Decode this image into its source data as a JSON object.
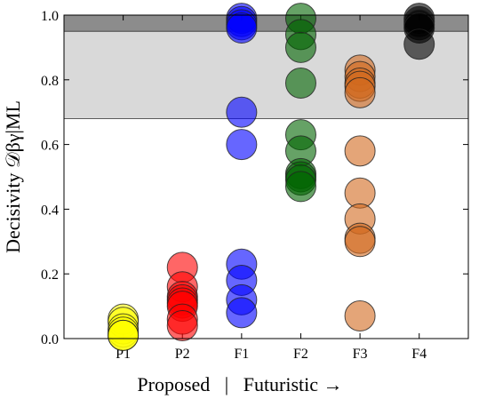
{
  "chart_data": {
    "type": "strip",
    "ylabel": "Decisivity 𝒟βγ|ML",
    "xlabel": "Proposed   |   Futuristic →",
    "categories": [
      "P1",
      "P2",
      "F1",
      "F2",
      "F3",
      "F4"
    ],
    "colors": [
      "#ffff00",
      "#ff0000",
      "#0000ff",
      "#006400",
      "#d2691e",
      "#000000"
    ],
    "values": [
      [
        0.06,
        0.05,
        0.03,
        0.02,
        0.01,
        0.01
      ],
      [
        0.22,
        0.16,
        0.13,
        0.12,
        0.11,
        0.1,
        0.06,
        0.04
      ],
      [
        0.99,
        0.98,
        0.97,
        0.96,
        0.7,
        0.6,
        0.23,
        0.18,
        0.12,
        0.08
      ],
      [
        0.99,
        0.94,
        0.9,
        0.79,
        0.63,
        0.58,
        0.51,
        0.5,
        0.49,
        0.47
      ],
      [
        0.83,
        0.81,
        0.79,
        0.78,
        0.76,
        0.58,
        0.45,
        0.37,
        0.31,
        0.3,
        0.07
      ],
      [
        0.99,
        0.98,
        0.97,
        0.96,
        0.91
      ]
    ],
    "bands": [
      {
        "from": 0.68,
        "to": 0.95,
        "color": "#d9d9d9"
      },
      {
        "from": 0.95,
        "to": 1.0,
        "color": "#8c8c8c"
      }
    ],
    "ylim": [
      0,
      1
    ],
    "yticks": [
      {
        "value": 0,
        "label": "0.0"
      },
      {
        "value": 0.2,
        "label": "0.2"
      },
      {
        "value": 0.4,
        "label": "0.4"
      },
      {
        "value": 0.6,
        "label": "0.6"
      },
      {
        "value": 0.8,
        "label": "0.8"
      },
      {
        "value": 1,
        "label": "1.0"
      }
    ]
  }
}
